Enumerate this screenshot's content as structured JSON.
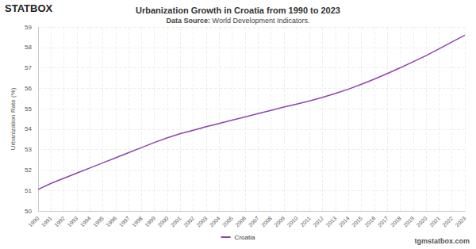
{
  "chart_data": {
    "type": "line",
    "title": "Urbanization Growth in Croatia from 1990 to 2023",
    "subtitle": {
      "label": "Data Source:",
      "text": "World Development Indicators."
    },
    "logo": "STATBOX",
    "footer": "tgmstatbox.com",
    "y_label": "Urbanization Rate (%)",
    "categories": [
      "1990",
      "1991",
      "1992",
      "1993",
      "1994",
      "1995",
      "1996",
      "1997",
      "1998",
      "1999",
      "2000",
      "2001",
      "2002",
      "2003",
      "2004",
      "2005",
      "2006",
      "2007",
      "2008",
      "2009",
      "2010",
      "2011",
      "2012",
      "2013",
      "2014",
      "2015",
      "2016",
      "2017",
      "2018",
      "2019",
      "2020",
      "2021",
      "2022",
      "2023"
    ],
    "series": [
      {
        "name": "Croatia",
        "color": "#8e44ad",
        "values": [
          51.05,
          51.35,
          51.6,
          51.85,
          52.1,
          52.35,
          52.6,
          52.85,
          53.1,
          53.35,
          53.58,
          53.78,
          53.95,
          54.12,
          54.28,
          54.44,
          54.6,
          54.76,
          54.92,
          55.08,
          55.23,
          55.38,
          55.56,
          55.75,
          55.96,
          56.2,
          56.45,
          56.72,
          57.0,
          57.3,
          57.6,
          57.93,
          58.27,
          58.6
        ]
      }
    ],
    "ylim": [
      50,
      59
    ],
    "yticks": [
      50,
      51,
      52,
      53,
      54,
      55,
      56,
      57,
      58,
      59
    ],
    "grid": true,
    "legend": "bottom"
  }
}
